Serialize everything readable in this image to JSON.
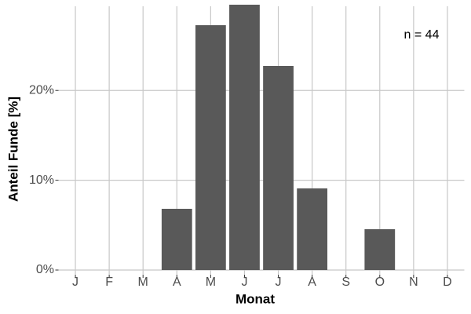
{
  "chart_data": {
    "type": "bar",
    "xlabel": "Monat",
    "ylabel": "Anteil Funde [%]",
    "annotation": "n = 44",
    "categories": [
      "J",
      "F",
      "M",
      "A",
      "M",
      "J",
      "J",
      "A",
      "S",
      "O",
      "N",
      "D"
    ],
    "values": [
      0,
      0,
      0,
      6.82,
      27.27,
      29.55,
      22.73,
      9.09,
      0,
      4.55,
      0,
      0
    ],
    "color": "#595959",
    "ylim": [
      0,
      29.55
    ],
    "yticks": [
      {
        "value": 0,
        "label": "0%"
      },
      {
        "value": 10,
        "label": "10%"
      },
      {
        "value": 20,
        "label": "20%"
      }
    ],
    "grid": true
  }
}
